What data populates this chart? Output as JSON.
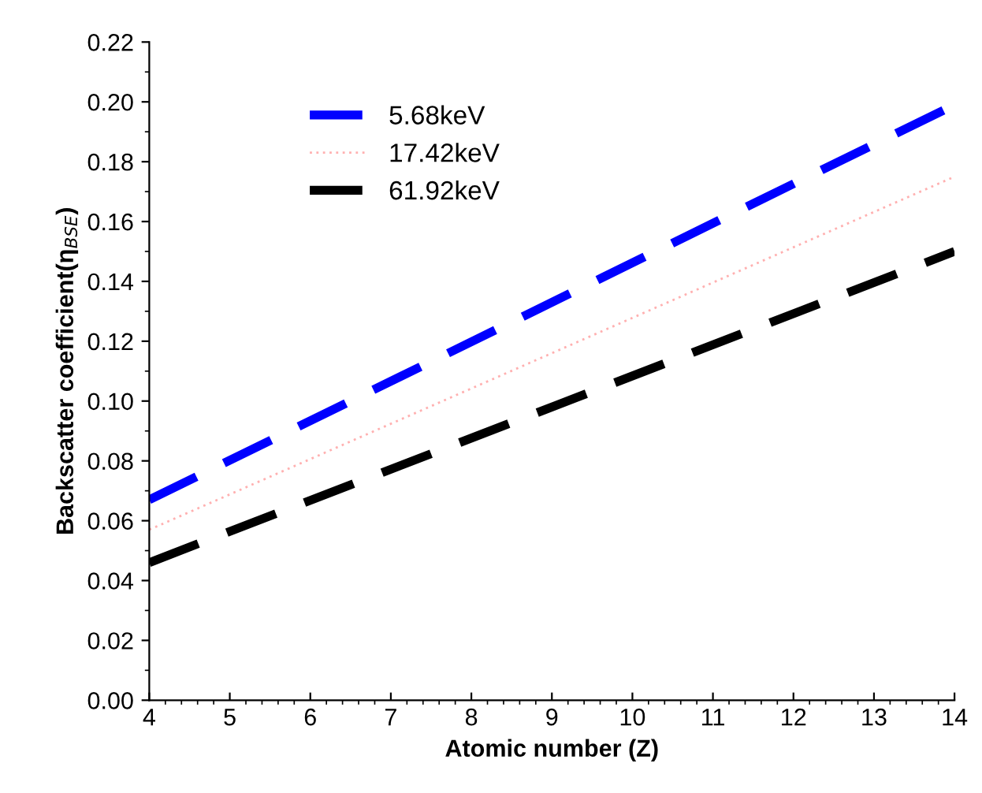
{
  "chart_data": {
    "type": "line",
    "xlabel": "Atomic number (Z)",
    "ylabel": "Backscatter coefficient(η$_{BSE}$)",
    "xlim": [
      4,
      14
    ],
    "xticks": [
      4,
      5,
      6,
      7,
      8,
      9,
      10,
      11,
      12,
      13,
      14
    ],
    "ylim": [
      0,
      0.22
    ],
    "yticks": [
      {
        "value": 0,
        "label": "0.00"
      },
      {
        "value": 0.02,
        "label": "0.02"
      },
      {
        "value": 0.04,
        "label": "0.04"
      },
      {
        "value": 0.06,
        "label": "0.06"
      },
      {
        "value": 0.08,
        "label": "0.08"
      },
      {
        "value": 0.1,
        "label": "0.10"
      },
      {
        "value": 0.12,
        "label": "0.12"
      },
      {
        "value": 0.14,
        "label": "0.14"
      },
      {
        "value": 0.16,
        "label": "0.16"
      },
      {
        "value": 0.18,
        "label": "0.18"
      },
      {
        "value": 0.2,
        "label": "0.20"
      },
      {
        "value": 0.22,
        "label": "0.22"
      }
    ],
    "grid": false,
    "legend": "top left",
    "marker": "none",
    "x": [
      4,
      14
    ],
    "series": [
      {
        "name": "5.68keV",
        "color": "#0000ff",
        "line_style": "dashed",
        "values": [
          0.067,
          0.199
        ]
      },
      {
        "name": "17.42keV",
        "color": "#ffb0b0",
        "line_style": "dotted",
        "values": [
          0.057,
          0.175
        ]
      },
      {
        "name": "61.92keV",
        "color": "#000000",
        "line_style": "dashed",
        "values": [
          0.046,
          0.15
        ]
      }
    ]
  }
}
